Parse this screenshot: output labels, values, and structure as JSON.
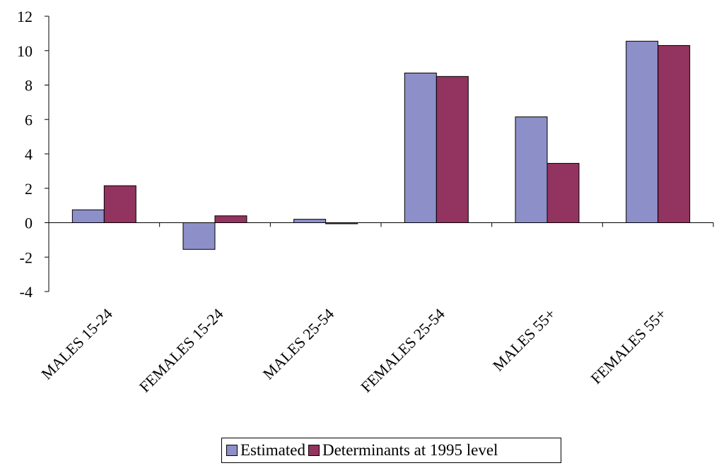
{
  "chart_data": {
    "type": "bar",
    "title": "",
    "xlabel": "",
    "ylabel": "",
    "categories": [
      "MALES 15-24",
      "FEMALES 15-24",
      "MALES 25-54",
      "FEMALES 25-54",
      "MALES 55+",
      "FEMALES 55+"
    ],
    "series": [
      {
        "name": "Estimated",
        "values": [
          0.75,
          -1.55,
          0.2,
          8.7,
          6.15,
          10.55
        ],
        "color": "#8c8fc8"
      },
      {
        "name": "Determinants at 1995 level",
        "values": [
          2.15,
          0.4,
          -0.05,
          8.5,
          3.45,
          10.3
        ],
        "color": "#93335f"
      }
    ],
    "ylim": [
      -4,
      12
    ],
    "yticks": [
      -4,
      -2,
      0,
      2,
      4,
      6,
      8,
      10,
      12
    ],
    "ytick_labels": [
      "-4",
      "-2",
      "0",
      "2",
      "4",
      "6",
      "8",
      "10",
      "12"
    ],
    "grid": false,
    "legend_position": "bottom"
  }
}
